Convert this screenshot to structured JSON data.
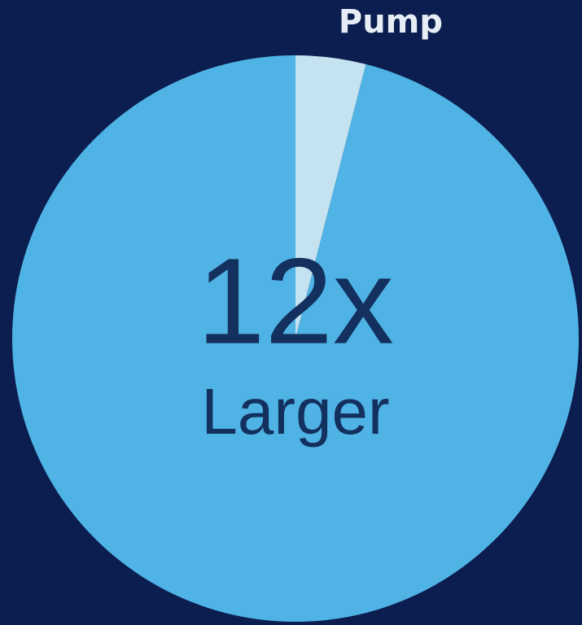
{
  "chart_data": {
    "type": "pie",
    "categories": [
      "Pump",
      null
    ],
    "values": [
      4,
      96
    ],
    "colors": [
      "#c4e2f0",
      "#4fb4e5"
    ],
    "start_angle": 0,
    "direction": "clockwise",
    "annotations": [
      "12x",
      "Larger"
    ]
  }
}
